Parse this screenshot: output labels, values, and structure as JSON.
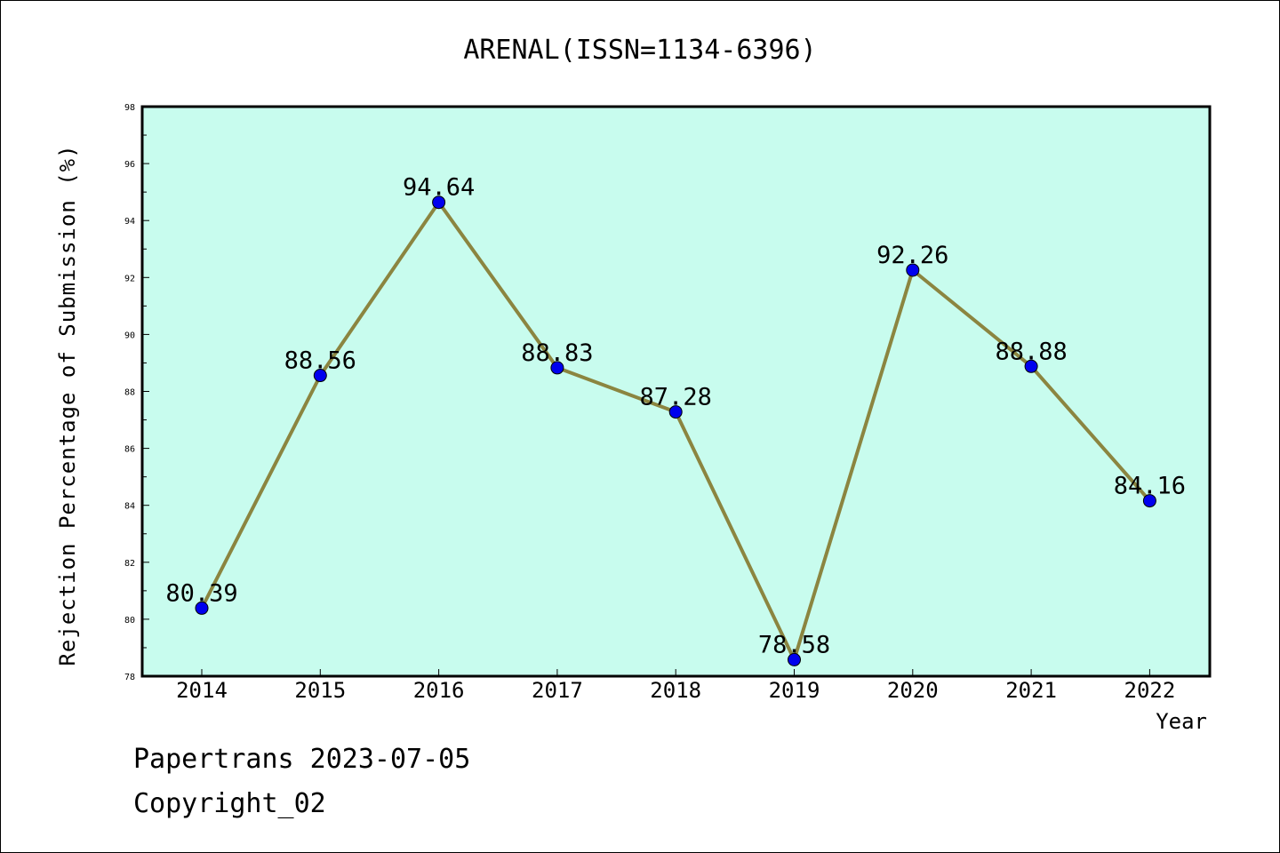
{
  "chart_data": {
    "type": "line",
    "title": "ARENAL(ISSN=1134-6396)",
    "xlabel": "Year",
    "ylabel": "Rejection Percentage of Submission (%)",
    "categories": [
      "2014",
      "2015",
      "2016",
      "2017",
      "2018",
      "2019",
      "2020",
      "2021",
      "2022"
    ],
    "series": [
      {
        "values": [
          80.39,
          88.56,
          94.64,
          88.83,
          87.28,
          78.58,
          92.26,
          88.88,
          84.16
        ]
      }
    ],
    "data_labels": [
      "80.39",
      "88.56",
      "94.64",
      "88.83",
      "87.28",
      "78.58",
      "92.26",
      "88.88",
      "84.16"
    ],
    "ylim": [
      78,
      98
    ],
    "yticks": [
      "78",
      "80",
      "82",
      "84",
      "86",
      "88",
      "90",
      "92",
      "94",
      "96",
      "98"
    ],
    "grid": false,
    "colors": {
      "plot_background": "#c8fcee",
      "line": "#8b8540",
      "marker": "#0000ee"
    }
  },
  "footer": {
    "source": "Papertrans 2023-07-05",
    "copyright": "Copyright_02"
  }
}
